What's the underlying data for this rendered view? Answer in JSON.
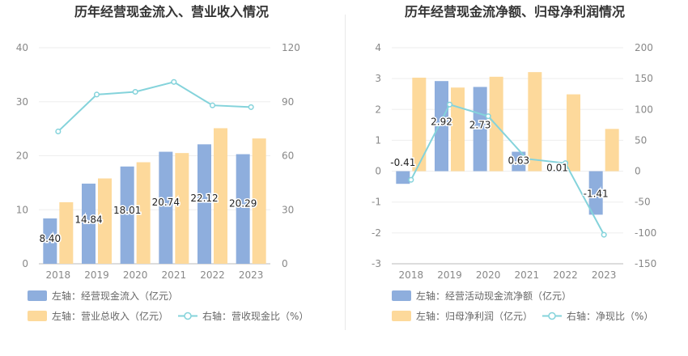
{
  "charts": {
    "left": {
      "title": "历年经营现金流入、营业收入情况",
      "legend": {
        "bar1": "左轴：经营现金流入（亿元）",
        "bar2": "左轴：营业总收入（亿元）",
        "line": "右轴：营收现金比（%）"
      }
    },
    "right": {
      "title": "历年经营现金流净额、归母净利润情况",
      "legend": {
        "bar1": "左轴：经营活动现金流净额（亿元）",
        "bar2": "左轴：归母净利润（亿元）",
        "line": "右轴：净现比（%）"
      }
    }
  },
  "colors": {
    "bar_primary": "#8eaedd",
    "bar_secondary": "#fdd99b",
    "line": "#84d3db",
    "axis_text": "#888888",
    "grid": "#eeeeee",
    "title": "#333333"
  },
  "chart_data": [
    {
      "type": "bar",
      "title": "历年经营现金流入、营业收入情况",
      "categories": [
        "2018",
        "2019",
        "2020",
        "2021",
        "2022",
        "2023"
      ],
      "series": [
        {
          "name": "左轴：经营现金流入（亿元）",
          "axis": "left",
          "type": "bar",
          "values": [
            8.4,
            14.84,
            18.01,
            20.74,
            22.12,
            20.29
          ],
          "labels": [
            "8.40",
            "14.84",
            "18.01",
            "20.74",
            "22.12",
            "20.29"
          ]
        },
        {
          "name": "左轴：营业总收入（亿元）",
          "axis": "left",
          "type": "bar",
          "values": [
            11.4,
            15.8,
            18.8,
            20.5,
            25.1,
            23.2
          ]
        },
        {
          "name": "右轴：营收现金比（%）",
          "axis": "right",
          "type": "line",
          "values": [
            73.5,
            94.0,
            95.5,
            101.0,
            88.0,
            87.0
          ]
        }
      ],
      "ylim_left": [
        0,
        40
      ],
      "yticks_left": [
        "0",
        "10",
        "20",
        "30",
        "40"
      ],
      "ylim_right": [
        0,
        120
      ],
      "yticks_right": [
        "0",
        "30",
        "60",
        "90",
        "120"
      ],
      "grid": true,
      "legend_position": "bottom"
    },
    {
      "type": "bar",
      "title": "历年经营现金流净额、归母净利润情况",
      "categories": [
        "2018",
        "2019",
        "2020",
        "2021",
        "2022",
        "2023"
      ],
      "series": [
        {
          "name": "左轴：经营活动现金流净额（亿元）",
          "axis": "left",
          "type": "bar",
          "values": [
            -0.41,
            2.92,
            2.73,
            0.63,
            0.01,
            -1.41
          ],
          "labels": [
            "-0.41",
            "2.92",
            "2.73",
            "0.63",
            "0.01",
            "-1.41"
          ]
        },
        {
          "name": "左轴：归母净利润（亿元）",
          "axis": "left",
          "type": "bar",
          "values": [
            3.03,
            2.71,
            3.06,
            3.21,
            2.49,
            1.37
          ]
        },
        {
          "name": "右轴：净现比（%）",
          "axis": "right",
          "type": "line",
          "values": [
            -14,
            108,
            89,
            20,
            13,
            -103
          ]
        }
      ],
      "ylim_left": [
        -3,
        4
      ],
      "yticks_left": [
        "-3",
        "-2",
        "-1",
        "0",
        "1",
        "2",
        "3",
        "4"
      ],
      "ylim_right": [
        -150,
        200
      ],
      "yticks_right": [
        "-150",
        "-100",
        "-50",
        "0",
        "50",
        "100",
        "150",
        "200"
      ],
      "grid": true,
      "legend_position": "bottom"
    }
  ]
}
